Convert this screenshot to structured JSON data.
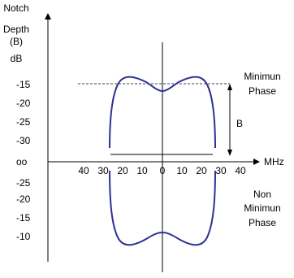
{
  "y_axis": {
    "title_lines": [
      "Notch",
      "Depth",
      "(B)",
      "dB"
    ],
    "upper_ticks": [
      "-15",
      "-20",
      "-25",
      "-30"
    ],
    "zero_label": "oo",
    "lower_ticks": [
      "-25",
      "-20",
      "-15",
      "-10"
    ]
  },
  "x_axis": {
    "unit_label": "MHz",
    "left_ticks": [
      "40",
      "30",
      "20",
      "10",
      "0"
    ],
    "right_ticks": [
      "10",
      "20",
      "30",
      "40"
    ]
  },
  "annotations": {
    "minimum_phase": [
      "Minimun",
      "Phase"
    ],
    "non_minimum_phase": [
      "Non",
      "Minimun",
      "Phase"
    ],
    "depth_marker": "B"
  },
  "colors": {
    "curve": "#2e3192",
    "axis": "#000000"
  }
}
